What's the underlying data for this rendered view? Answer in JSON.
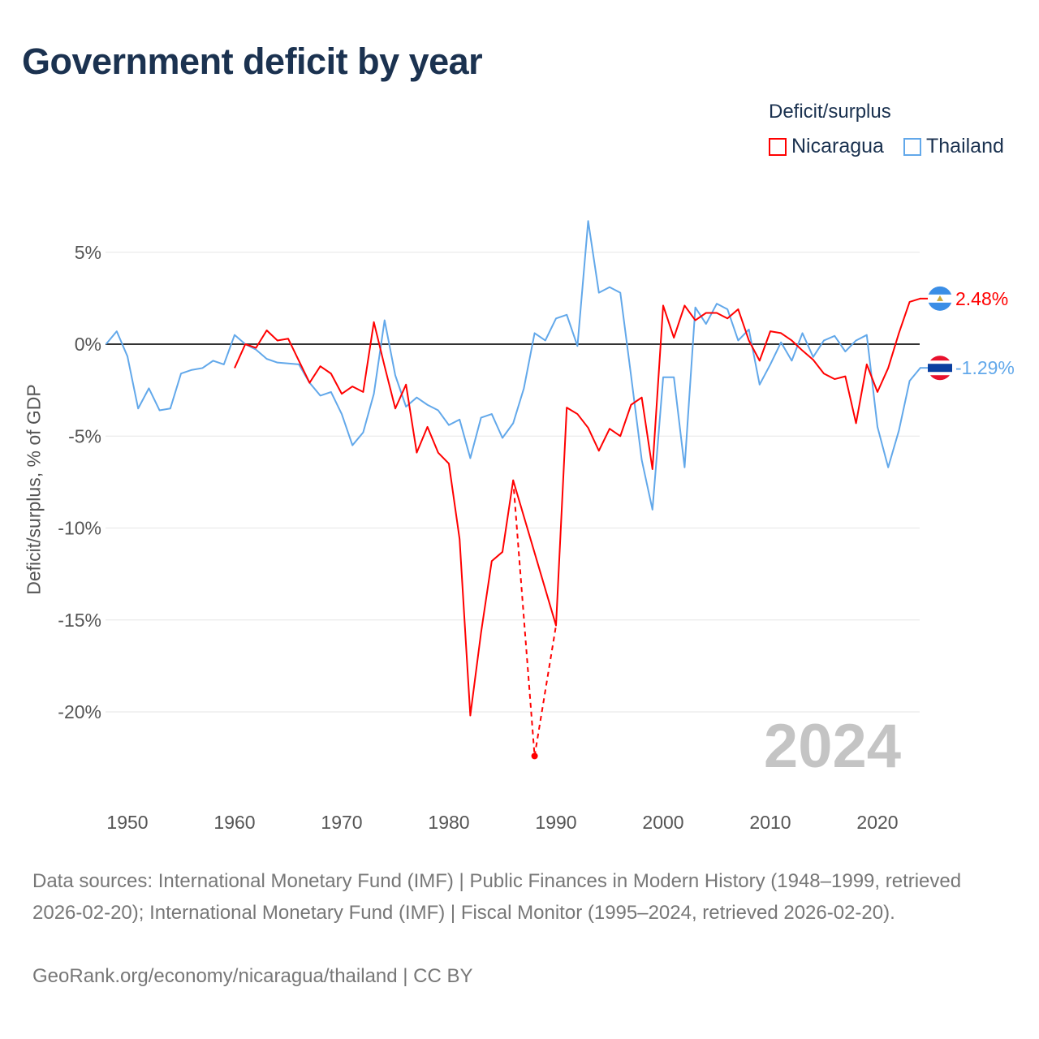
{
  "title": "Government deficit by year",
  "legend": {
    "title": "Deficit/surplus",
    "items": [
      {
        "name": "Nicaragua",
        "color": "#ff0000"
      },
      {
        "name": "Thailand",
        "color": "#62a8ea"
      }
    ]
  },
  "year_watermark": "2024",
  "end_labels": {
    "nicaragua": "2.48%",
    "thailand": "-1.29%"
  },
  "footer": {
    "sources": "Data sources: International Monetary Fund (IMF) | Public Finances in Modern History (1948–1999, retrieved 2026-02-20); International Monetary Fund (IMF) | Fiscal Monitor (1995–2024, retrieved 2026-02-20).",
    "credit": "GeoRank.org/economy/nicaragua/thailand | CC BY"
  },
  "chart_data": {
    "type": "line",
    "title": "Government deficit by year",
    "xlabel": "",
    "ylabel": "Deficit/surplus, % of GDP",
    "xlim": [
      1948,
      2024
    ],
    "ylim": [
      -22.5,
      7
    ],
    "xticks": [
      1950,
      1960,
      1970,
      1980,
      1990,
      2000,
      2010,
      2020
    ],
    "yticks": [
      {
        "v": 5,
        "label": "5%"
      },
      {
        "v": 0,
        "label": "0%"
      },
      {
        "v": -5,
        "label": "-5%"
      },
      {
        "v": -10,
        "label": "-10%"
      },
      {
        "v": -15,
        "label": "-15%"
      },
      {
        "v": -20,
        "label": "-20%"
      }
    ],
    "legend_position": "top-right",
    "series": [
      {
        "name": "Thailand",
        "color": "#62a8ea",
        "start": 1948,
        "values": [
          0,
          0.7,
          -0.66,
          -3.5,
          -2.4,
          -3.6,
          -3.5,
          -1.6,
          -1.4,
          -1.3,
          -0.9,
          -1.1,
          0.5,
          0,
          -0.3,
          -0.8,
          -1.0,
          -1.05,
          -1.1,
          -2.1,
          -2.8,
          -2.6,
          -3.8,
          -5.5,
          -4.8,
          -2.7,
          1.3,
          -1.7,
          -3.4,
          -2.9,
          -3.3,
          -3.6,
          -4.4,
          -4.1,
          -6.2,
          -4.0,
          -3.8,
          -5.1,
          -4.3,
          -2.4,
          0.6,
          0.2,
          1.4,
          1.6,
          -0.1,
          6.7,
          2.8,
          3.1,
          2.8,
          -1.7,
          -6.3,
          -9.0,
          -1.8,
          -1.8,
          -6.7,
          2.0,
          1.1,
          2.2,
          1.9,
          0.2,
          0.8,
          -2.2,
          -1.1,
          0.1,
          -0.9,
          0.6,
          -0.7,
          0.2,
          0.45,
          -0.4,
          0.2,
          0.5,
          -4.5,
          -6.7,
          -4.7,
          -2.0,
          -1.29
        ]
      },
      {
        "name": "Nicaragua",
        "color": "#ff0000",
        "start": 1960,
        "values": [
          -1.3,
          0,
          -0.2,
          0.75,
          0.2,
          0.3,
          -0.9,
          -2.1,
          -1.2,
          -1.6,
          -2.7,
          -2.3,
          -2.6,
          1.2,
          -1.2,
          -3.5,
          -2.2,
          -5.9,
          -4.5,
          -5.9,
          -6.5,
          -10.6,
          -20.2,
          -15.7,
          -11.8,
          -11.3,
          -7.4,
          null,
          -22.4,
          null,
          -15.3,
          -3.45,
          -3.8,
          -4.55,
          -5.8,
          -4.6,
          -5.0,
          -3.3,
          -2.9,
          -6.8,
          2.1,
          0.35,
          2.1,
          1.3,
          1.7,
          1.7,
          1.4,
          1.9,
          0.2,
          -0.9,
          0.7,
          0.6,
          0.2,
          -0.35,
          -0.85,
          -1.6,
          -1.9,
          -1.75,
          -4.3,
          -1.1,
          -2.6,
          -1.3,
          0.6,
          2.3,
          2.48
        ]
      }
    ]
  }
}
